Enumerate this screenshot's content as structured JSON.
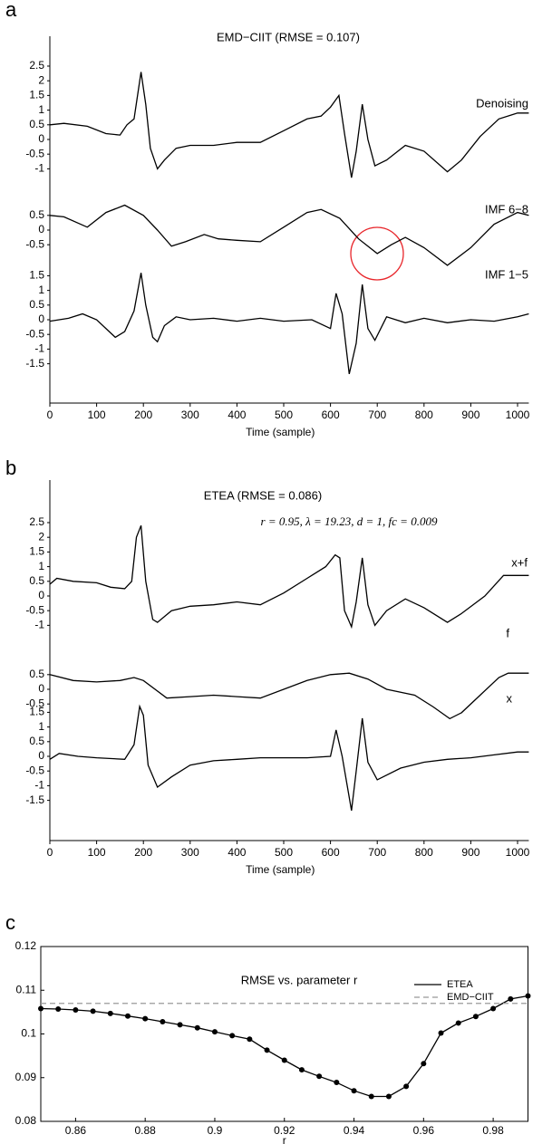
{
  "chart_data": [
    {
      "type": "line",
      "label": "a",
      "title": "EMD−CIIT (RMSE = 0.107)",
      "x_label": "Time (sample)",
      "xlim": [
        0,
        1024
      ],
      "xticks": [
        0,
        100,
        200,
        300,
        400,
        500,
        600,
        700,
        800,
        900,
        1000
      ],
      "series": [
        {
          "name": "Denoising",
          "color": "#000000",
          "x": [
            0,
            30,
            80,
            120,
            150,
            165,
            180,
            195,
            205,
            215,
            230,
            245,
            270,
            300,
            350,
            400,
            450,
            500,
            550,
            580,
            600,
            618,
            630,
            645,
            655,
            668,
            680,
            695,
            720,
            760,
            800,
            850,
            880,
            920,
            960,
            1000,
            1024
          ],
          "values": [
            0.5,
            0.55,
            0.45,
            0.2,
            0.15,
            0.5,
            0.7,
            2.3,
            1.2,
            -0.3,
            -1.0,
            -0.7,
            -0.3,
            -0.2,
            -0.2,
            -0.1,
            -0.1,
            0.3,
            0.7,
            0.8,
            1.1,
            1.5,
            0.2,
            -1.3,
            -0.4,
            1.2,
            0.0,
            -0.9,
            -0.7,
            -0.2,
            -0.4,
            -1.1,
            -0.7,
            0.1,
            0.7,
            0.9,
            0.9
          ],
          "ylim": [
            -1.3,
            2.7
          ],
          "yticks": [
            2.5,
            2,
            1.5,
            1,
            0.5,
            0,
            -0.5,
            -1
          ]
        },
        {
          "name": "IMF 6−8",
          "color": "#000000",
          "x": [
            0,
            30,
            80,
            120,
            160,
            200,
            230,
            260,
            290,
            330,
            360,
            400,
            450,
            500,
            550,
            580,
            620,
            660,
            700,
            730,
            760,
            800,
            850,
            900,
            950,
            1000,
            1024
          ],
          "values": [
            0.5,
            0.45,
            0.1,
            0.6,
            0.85,
            0.5,
            0.0,
            -0.55,
            -0.4,
            -0.15,
            -0.3,
            -0.35,
            -0.4,
            0.1,
            0.6,
            0.7,
            0.4,
            -0.3,
            -0.8,
            -0.5,
            -0.25,
            -0.6,
            -1.2,
            -0.6,
            0.2,
            0.6,
            0.5
          ],
          "ylim": [
            -1.3,
            1.0
          ],
          "yticks": [
            0.5,
            0,
            -0.5
          ]
        },
        {
          "name": "IMF 1−5",
          "color": "#000000",
          "x": [
            0,
            40,
            70,
            100,
            140,
            160,
            180,
            195,
            205,
            220,
            230,
            245,
            270,
            300,
            350,
            400,
            450,
            500,
            560,
            600,
            612,
            625,
            640,
            655,
            668,
            680,
            695,
            720,
            760,
            800,
            850,
            900,
            950,
            1000,
            1024
          ],
          "values": [
            -0.05,
            0.05,
            0.2,
            0.0,
            -0.6,
            -0.4,
            0.3,
            1.6,
            0.5,
            -0.6,
            -0.75,
            -0.2,
            0.1,
            0.0,
            0.05,
            -0.05,
            0.05,
            -0.05,
            0.0,
            -0.3,
            0.9,
            0.2,
            -1.85,
            -0.8,
            1.2,
            -0.3,
            -0.7,
            0.1,
            -0.1,
            0.05,
            -0.1,
            0.0,
            -0.05,
            0.1,
            0.2
          ],
          "ylim": [
            -2,
            1.8
          ],
          "yticks": [
            1.5,
            1,
            0.5,
            0,
            -0.5,
            -1,
            -1.5
          ]
        }
      ]
    },
    {
      "type": "line",
      "label": "b",
      "title": "ETEA (RMSE = 0.086)",
      "subtitle": "r = 0.95,  λ = 19.23,  d = 1,  fc = 0.009",
      "x_label": "Time (sample)",
      "xlim": [
        0,
        1024
      ],
      "xticks": [
        0,
        100,
        200,
        300,
        400,
        500,
        600,
        700,
        800,
        900,
        1000
      ],
      "series": [
        {
          "name": "x+f",
          "color": "#000000",
          "x": [
            0,
            15,
            50,
            100,
            130,
            160,
            175,
            185,
            195,
            205,
            220,
            230,
            260,
            300,
            350,
            400,
            450,
            500,
            550,
            590,
            610,
            620,
            630,
            645,
            655,
            668,
            680,
            695,
            720,
            760,
            800,
            850,
            880,
            930,
            970,
            1024
          ],
          "values": [
            0.4,
            0.6,
            0.5,
            0.45,
            0.3,
            0.25,
            0.5,
            2.0,
            2.4,
            0.5,
            -0.8,
            -0.9,
            -0.5,
            -0.35,
            -0.3,
            -0.2,
            -0.3,
            0.1,
            0.6,
            1.0,
            1.4,
            1.3,
            -0.5,
            -1.05,
            -0.2,
            1.3,
            -0.3,
            -1.0,
            -0.5,
            -0.1,
            -0.4,
            -0.9,
            -0.6,
            0.0,
            0.7,
            0.7
          ],
          "ylim": [
            -1.3,
            2.7
          ],
          "yticks": [
            2.5,
            2,
            1.5,
            1,
            0.5,
            0,
            -0.5,
            -1
          ]
        },
        {
          "name": "f",
          "color": "#000000",
          "x": [
            0,
            50,
            100,
            150,
            180,
            200,
            250,
            300,
            350,
            400,
            450,
            500,
            550,
            600,
            640,
            680,
            720,
            780,
            820,
            855,
            880,
            920,
            960,
            980,
            1024
          ],
          "values": [
            0.5,
            0.3,
            0.25,
            0.3,
            0.4,
            0.3,
            -0.3,
            -0.25,
            -0.2,
            -0.25,
            -0.3,
            0.0,
            0.3,
            0.5,
            0.55,
            0.35,
            0.0,
            -0.2,
            -0.6,
            -1.0,
            -0.8,
            -0.2,
            0.4,
            0.55,
            0.55
          ],
          "ylim": [
            -1.2,
            1.0
          ],
          "yticks": [
            0.5,
            0,
            -0.5
          ]
        },
        {
          "name": "x",
          "color": "#000000",
          "x": [
            0,
            20,
            60,
            100,
            160,
            180,
            192,
            200,
            210,
            230,
            260,
            300,
            350,
            400,
            450,
            500,
            550,
            600,
            612,
            625,
            645,
            655,
            668,
            680,
            700,
            750,
            800,
            850,
            900,
            950,
            1000,
            1024
          ],
          "values": [
            -0.1,
            0.1,
            0.0,
            -0.05,
            -0.1,
            0.4,
            1.7,
            1.4,
            -0.3,
            -1.05,
            -0.7,
            -0.3,
            -0.15,
            -0.1,
            -0.05,
            -0.05,
            -0.05,
            0.0,
            0.9,
            0.0,
            -1.85,
            -0.5,
            1.3,
            -0.2,
            -0.8,
            -0.4,
            -0.2,
            -0.1,
            -0.05,
            0.05,
            0.15,
            0.15
          ],
          "ylim": [
            -2,
            1.8
          ],
          "yticks": [
            1.5,
            1,
            0.5,
            0,
            -0.5,
            -1,
            -1.5
          ]
        }
      ]
    },
    {
      "type": "line",
      "label": "c",
      "title": "RMSE vs. parameter r",
      "x_label": "r",
      "x": [
        0.85,
        0.855,
        0.86,
        0.865,
        0.87,
        0.875,
        0.88,
        0.885,
        0.89,
        0.895,
        0.9,
        0.905,
        0.91,
        0.915,
        0.92,
        0.925,
        0.93,
        0.935,
        0.94,
        0.945,
        0.95,
        0.955,
        0.96,
        0.965,
        0.97,
        0.975,
        0.98,
        0.985,
        0.99
      ],
      "xlim": [
        0.85,
        0.99
      ],
      "xticks": [
        0.86,
        0.88,
        0.9,
        0.92,
        0.94,
        0.96,
        0.98
      ],
      "ylim": [
        0.08,
        0.12
      ],
      "yticks": [
        0.08,
        0.09,
        0.1,
        0.11,
        0.12
      ],
      "legend": "upper right",
      "series": [
        {
          "name": "ETEA",
          "color": "#000000",
          "markers": true,
          "values": [
            0.1058,
            0.1057,
            0.1055,
            0.1052,
            0.1047,
            0.1041,
            0.1035,
            0.1028,
            0.1021,
            0.1014,
            0.1005,
            0.0996,
            0.0988,
            0.0963,
            0.094,
            0.0918,
            0.0903,
            0.0889,
            0.087,
            0.0857,
            0.0857,
            0.088,
            0.0932,
            0.1002,
            0.1025,
            0.104,
            0.1058,
            0.108,
            0.1087
          ]
        },
        {
          "name": "EMD−CIIT",
          "color": "#999999",
          "dashed": true,
          "value": 0.107
        }
      ]
    }
  ]
}
